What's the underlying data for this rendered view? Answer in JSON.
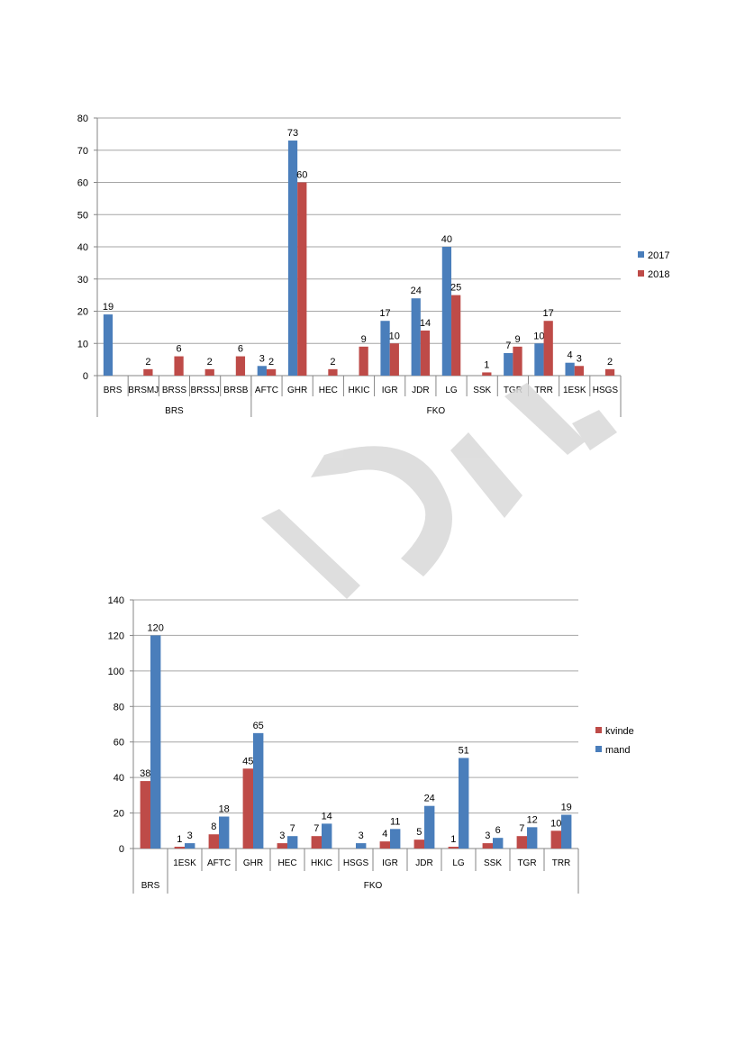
{
  "chart_data": [
    {
      "type": "bar",
      "groups": [
        {
          "label": "BRS",
          "categories": [
            "BRS",
            "BRSMJ",
            "BRSS",
            "BRSSJ",
            "BRSB"
          ]
        },
        {
          "label": "FKO",
          "categories": [
            "AFTC",
            "GHR",
            "HEC",
            "HKIC",
            "IGR",
            "JDR",
            "LG",
            "SSK",
            "TGR",
            "TRR",
            "1ESK",
            "HSGS"
          ]
        }
      ],
      "categories": [
        "BRS",
        "BRSMJ",
        "BRSS",
        "BRSSJ",
        "BRSB",
        "AFTC",
        "GHR",
        "HEC",
        "HKIC",
        "IGR",
        "JDR",
        "LG",
        "SSK",
        "TGR",
        "TRR",
        "1ESK",
        "HSGS"
      ],
      "series": [
        {
          "name": "2017",
          "color": "#4a7ebb",
          "values": [
            19,
            null,
            null,
            null,
            null,
            3,
            73,
            null,
            null,
            17,
            24,
            40,
            null,
            7,
            10,
            4,
            null
          ]
        },
        {
          "name": "2018",
          "color": "#be4b48",
          "values": [
            null,
            2,
            6,
            2,
            6,
            2,
            60,
            2,
            9,
            10,
            14,
            25,
            1,
            9,
            17,
            3,
            2
          ]
        }
      ],
      "ylim": [
        0,
        80
      ],
      "yticks": [
        0,
        10,
        20,
        30,
        40,
        50,
        60,
        70,
        80
      ],
      "grid": true,
      "legend": "right"
    },
    {
      "type": "bar",
      "groups": [
        {
          "label": "BRS",
          "categories": [
            ""
          ]
        },
        {
          "label": "FKO",
          "categories": [
            "1ESK",
            "AFTC",
            "GHR",
            "HEC",
            "HKIC",
            "HSGS",
            "IGR",
            "JDR",
            "LG",
            "SSK",
            "TGR",
            "TRR"
          ]
        }
      ],
      "categories": [
        "",
        "1ESK",
        "AFTC",
        "GHR",
        "HEC",
        "HKIC",
        "HSGS",
        "IGR",
        "JDR",
        "LG",
        "SSK",
        "TGR",
        "TRR"
      ],
      "series": [
        {
          "name": "kvinde",
          "color": "#be4b48",
          "values": [
            38,
            1,
            8,
            45,
            3,
            7,
            null,
            4,
            5,
            1,
            3,
            7,
            10
          ]
        },
        {
          "name": "mand",
          "color": "#4a7ebb",
          "values": [
            120,
            3,
            18,
            65,
            7,
            14,
            3,
            11,
            24,
            51,
            6,
            12,
            19
          ]
        }
      ],
      "ylim": [
        0,
        140
      ],
      "yticks": [
        0,
        20,
        40,
        60,
        80,
        100,
        120,
        140
      ],
      "grid": true,
      "legend": "right"
    }
  ]
}
